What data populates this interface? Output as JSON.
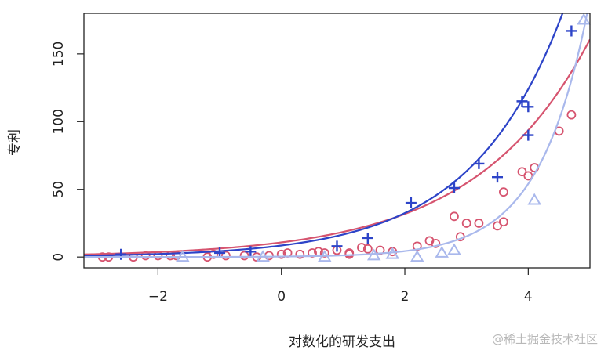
{
  "chart_data": {
    "type": "scatter",
    "xlabel": "对数化的研发支出",
    "ylabel": "专利",
    "xlim": [
      -3.2,
      5.0
    ],
    "ylim": [
      -8,
      180
    ],
    "xticks": [
      -2,
      0,
      2,
      4
    ],
    "yticks": [
      0,
      50,
      100,
      150
    ],
    "xtick_labels": [
      "−2",
      "0",
      "2",
      "4"
    ],
    "ytick_labels": [
      "0",
      "50",
      "100",
      "150"
    ],
    "grid": false,
    "series": [
      {
        "marker": "circle",
        "color": "#d6546f",
        "points": [
          [
            -2.9,
            0
          ],
          [
            -2.8,
            0
          ],
          [
            -2.4,
            0
          ],
          [
            -2.2,
            1
          ],
          [
            -2.0,
            1
          ],
          [
            -1.8,
            1
          ],
          [
            -1.7,
            1
          ],
          [
            -1.2,
            0
          ],
          [
            -1.1,
            2
          ],
          [
            -0.9,
            1
          ],
          [
            -0.6,
            1
          ],
          [
            -0.4,
            0
          ],
          [
            -0.2,
            1
          ],
          [
            0.0,
            2
          ],
          [
            0.1,
            3
          ],
          [
            0.3,
            2
          ],
          [
            0.5,
            3
          ],
          [
            0.6,
            4
          ],
          [
            0.7,
            3
          ],
          [
            0.9,
            5
          ],
          [
            1.1,
            3
          ],
          [
            1.1,
            2
          ],
          [
            1.3,
            7
          ],
          [
            1.4,
            6
          ],
          [
            1.6,
            5
          ],
          [
            1.8,
            4
          ],
          [
            2.2,
            8
          ],
          [
            2.4,
            12
          ],
          [
            2.5,
            10
          ],
          [
            2.8,
            30
          ],
          [
            2.9,
            15
          ],
          [
            3.0,
            25
          ],
          [
            3.2,
            25
          ],
          [
            3.5,
            23
          ],
          [
            3.6,
            26
          ],
          [
            3.6,
            48
          ],
          [
            3.9,
            63
          ],
          [
            4.0,
            60
          ],
          [
            4.1,
            66
          ],
          [
            4.5,
            93
          ],
          [
            4.7,
            105
          ]
        ],
        "fit": {
          "a": 10.8,
          "b": 0.54
        }
      },
      {
        "marker": "plus",
        "color": "#2d44c8",
        "points": [
          [
            -2.6,
            2
          ],
          [
            -1.0,
            3
          ],
          [
            -0.5,
            4
          ],
          [
            0.9,
            8
          ],
          [
            1.4,
            14
          ],
          [
            2.1,
            40
          ],
          [
            2.8,
            51
          ],
          [
            3.2,
            69
          ],
          [
            3.5,
            59
          ],
          [
            3.9,
            115
          ],
          [
            4.0,
            111
          ],
          [
            4.0,
            90
          ],
          [
            4.7,
            167
          ]
        ],
        "fit": {
          "a": 8.5,
          "b": 0.67
        }
      },
      {
        "marker": "triangle",
        "color": "#a9b8ec",
        "points": [
          [
            -1.6,
            0
          ],
          [
            -0.3,
            0
          ],
          [
            0.7,
            0
          ],
          [
            1.5,
            1
          ],
          [
            1.8,
            2
          ],
          [
            2.2,
            0
          ],
          [
            2.6,
            3
          ],
          [
            2.8,
            5
          ],
          [
            4.1,
            42
          ],
          [
            4.9,
            175
          ]
        ],
        "fit": {
          "a": 0.35,
          "b": 1.26
        }
      }
    ]
  },
  "watermark": "@稀土掘金技术社区"
}
